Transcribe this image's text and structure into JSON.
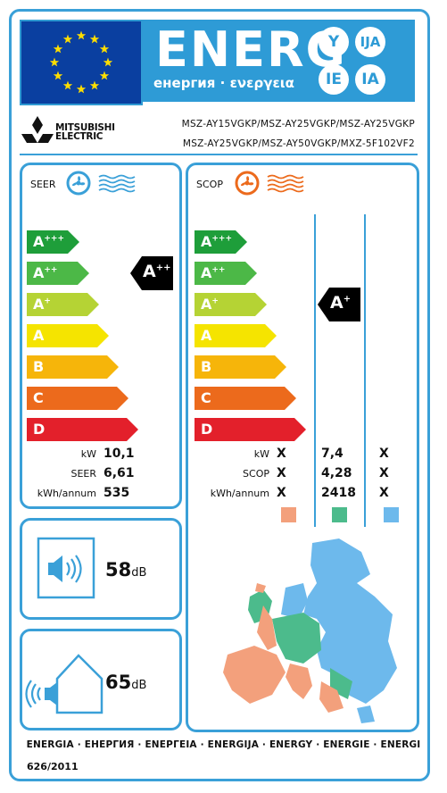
{
  "header": {
    "energ": "ENERG",
    "subtitle": "енергия · ενεργεια",
    "letters": [
      "Y",
      "IJA",
      "IE",
      "IA"
    ]
  },
  "brand": {
    "line1": "MITSUBISHI",
    "line2": "ELECTRIC"
  },
  "models": {
    "line1": "MSZ-AY15VGKP/MSZ-AY25VGKP/MSZ-AY25VGKP",
    "line2": "MSZ-AY25VGKP/MSZ-AY50VGKP/MXZ-5F102VF2"
  },
  "scale": [
    {
      "label": "A",
      "sup": "+++",
      "color": "#1e9e3a"
    },
    {
      "label": "A",
      "sup": "++",
      "color": "#4cb847"
    },
    {
      "label": "A",
      "sup": "+",
      "color": "#b5d334"
    },
    {
      "label": "A",
      "sup": "",
      "color": "#f5e400"
    },
    {
      "label": "B",
      "sup": "",
      "color": "#f6b50a"
    },
    {
      "label": "C",
      "sup": "",
      "color": "#ec6a1c"
    },
    {
      "label": "D",
      "sup": "",
      "color": "#e3202b"
    }
  ],
  "seer": {
    "title": "SEER",
    "rating": {
      "label": "A",
      "sup": "++"
    },
    "rows": [
      {
        "label": "kW",
        "value": "10,1"
      },
      {
        "label": "SEER",
        "value": "6,61"
      },
      {
        "label": "kWh/annum",
        "value": "535"
      }
    ]
  },
  "scop": {
    "title": "SCOP",
    "rating": {
      "label": "A",
      "sup": "+"
    },
    "rows": [
      {
        "label": "kW",
        "values": [
          "X",
          "7,4",
          "X"
        ]
      },
      {
        "label": "SCOP",
        "values": [
          "X",
          "4,28",
          "X"
        ]
      },
      {
        "label": "kWh/annum",
        "values": [
          "X",
          "2418",
          "X"
        ]
      }
    ],
    "zone_colors": [
      "#f3a07c",
      "#4cbb8c",
      "#6db9ec"
    ]
  },
  "noise": {
    "indoor": {
      "value": "58",
      "unit": "dB"
    },
    "outdoor": {
      "value": "65",
      "unit": "dB"
    }
  },
  "footer": {
    "languages": "ENERGIA · ЕНЕРГИЯ · ΕΝΕΡΓΕΙΑ · ENERGIJA · ENERGY · ENERGIE · ENERGI",
    "regulation": "626/2011"
  }
}
